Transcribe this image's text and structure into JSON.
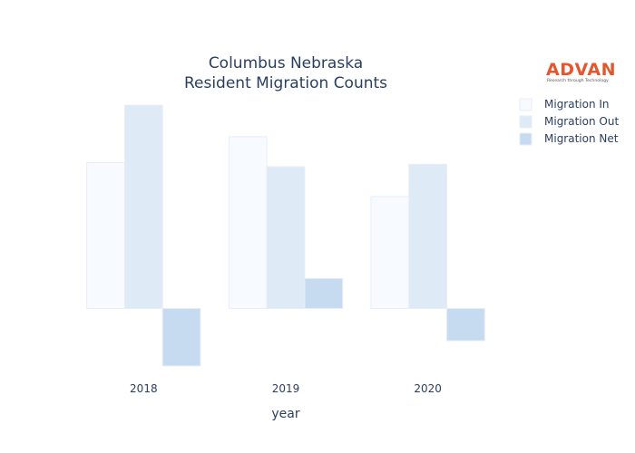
{
  "chart_data": {
    "type": "bar",
    "title_lines": [
      "Columbus Nebraska",
      "Resident Migration Counts"
    ],
    "xlabel": "year",
    "ylabel": "",
    "categories": [
      "2018",
      "2019",
      "2020"
    ],
    "series": [
      {
        "name": "Migration In",
        "values": [
          185,
          218,
          142
        ],
        "color": "#f7fbff"
      },
      {
        "name": "Migration Out",
        "values": [
          258,
          180,
          183
        ],
        "color": "#deebf7"
      },
      {
        "name": "Migration Net",
        "values": [
          -73,
          38,
          -41
        ],
        "color": "#c6dbef"
      }
    ],
    "ylim": [
      -80,
      265
    ],
    "grid": false,
    "y_tick_labels_shown": false,
    "legend_position": "top-right"
  },
  "logo": {
    "text": "ADVAN",
    "tagline": "Research through Technology",
    "color": "#e4572e"
  }
}
